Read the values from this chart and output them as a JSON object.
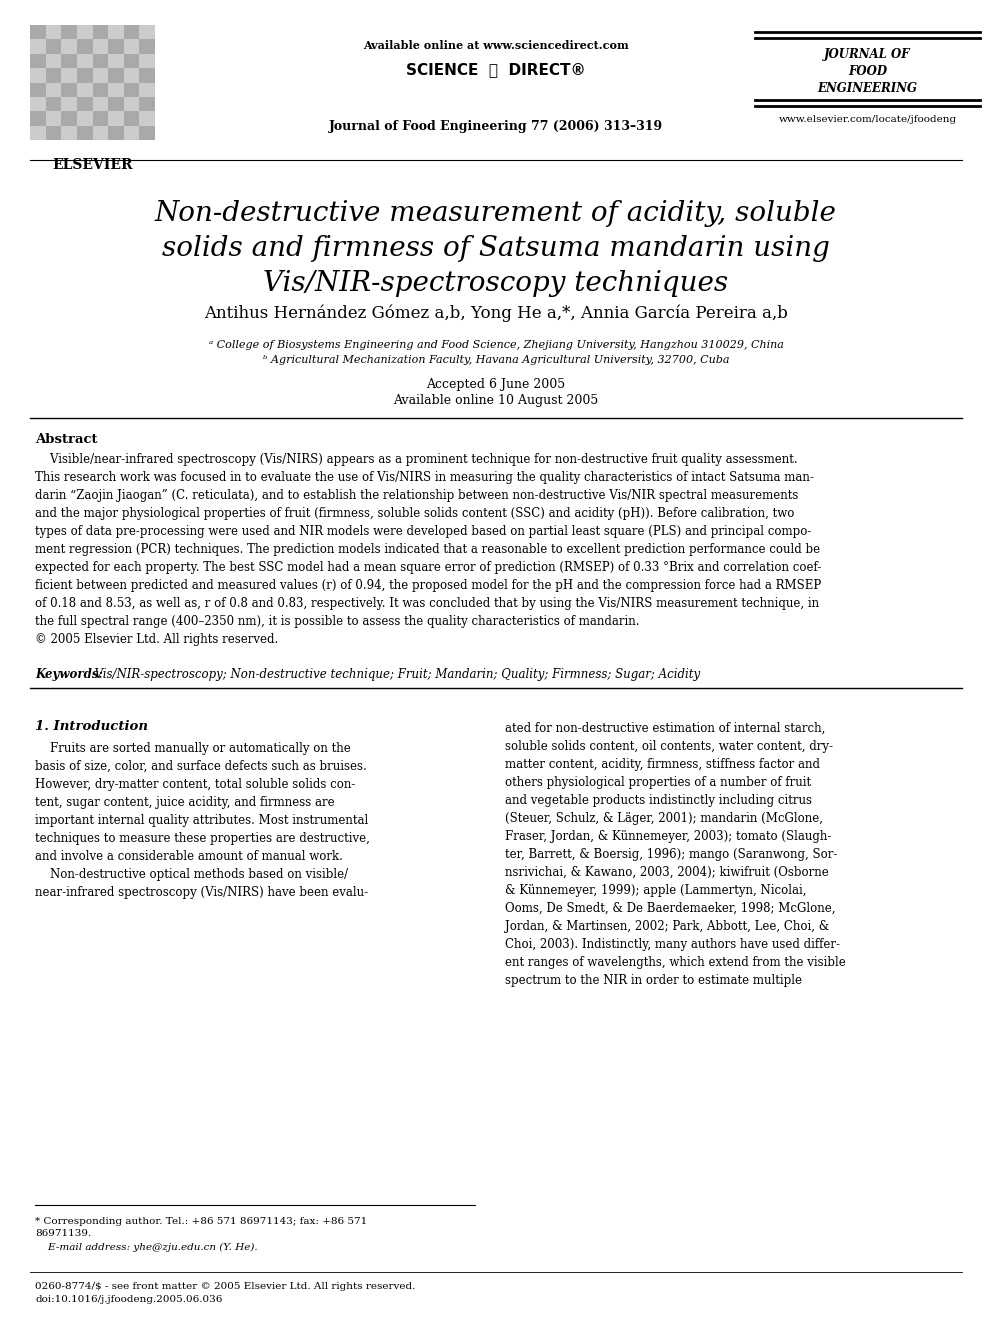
{
  "page_bg": "#ffffff",
  "elsevier_text": "ELSEVIER",
  "available_online": "Available online at www.sciencedirect.com",
  "science_direct_1": "SCIENCE",
  "science_direct_2": "DIRECT",
  "journal_ref": "Journal of Food Engineering 77 (2006) 313–319",
  "journal_name_line1": "JOURNAL OF",
  "journal_name_line2": "FOOD",
  "journal_name_line3": "ENGINEERING",
  "journal_url": "www.elsevier.com/locate/jfoodeng",
  "title_line1": "Non-destructive measurement of acidity, soluble",
  "title_line2": "solids and firmness of Satsuma mandarin using",
  "title_line3": "Vis/NIR-spectroscopy techniques",
  "authors_line": "Antihus Hernández Gómez a,b, Yong He a,*, Annia García Pereira a,b",
  "affil_a": "ᵃ College of Biosystems Engineering and Food Science, Zhejiang University, Hangzhou 310029, China",
  "affil_b": "ᵇ Agricultural Mechanization Faculty, Havana Agricultural University, 32700, Cuba",
  "accepted": "Accepted 6 June 2005",
  "available": "Available online 10 August 2005",
  "abstract_title": "Abstract",
  "abstract_para": "    Visible/near-infrared spectroscopy (Vis/NIRS) appears as a prominent technique for non-destructive fruit quality assessment.\nThis research work was focused in to evaluate the use of Vis/NIRS in measuring the quality characteristics of intact Satsuma man-\ndarin “Zaojin Jiaogan” (C. reticulata), and to establish the relationship between non-destructive Vis/NIR spectral measurements\nand the major physiological properties of fruit (firmness, soluble solids content (SSC) and acidity (pH)). Before calibration, two\ntypes of data pre-processing were used and NIR models were developed based on partial least square (PLS) and principal compo-\nment regression (PCR) techniques. The prediction models indicated that a reasonable to excellent prediction performance could be\nexpected for each property. The best SSC model had a mean square error of prediction (RMSEP) of 0.33 °Brix and correlation coef-\nficient between predicted and measured values (r) of 0.94, the proposed model for the pH and the compression force had a RMSEP\nof 0.18 and 8.53, as well as, r of 0.8 and 0.83, respectively. It was concluded that by using the Vis/NIRS measurement technique, in\nthe full spectral range (400–2350 nm), it is possible to assess the quality characteristics of mandarin.\n© 2005 Elsevier Ltd. All rights reserved.",
  "keywords_label": "Keywords:",
  "keywords_text": "  Vis/NIR-spectroscopy; Non-destructive technique; Fruit; Mandarin; Quality; Firmness; Sugar; Acidity",
  "intro_header": "1. Introduction",
  "col1_text": "    Fruits are sorted manually or automatically on the\nbasis of size, color, and surface defects such as bruises.\nHowever, dry-matter content, total soluble solids con-\ntent, sugar content, juice acidity, and firmness are\nimportant internal quality attributes. Most instrumental\ntechniques to measure these properties are destructive,\nand involve a considerable amount of manual work.\n    Non-destructive optical methods based on visible/\nnear-infrared spectroscopy (Vis/NIRS) have been evalu-",
  "col2_text": "ated for non-destructive estimation of internal starch,\nsoluble solids content, oil contents, water content, dry-\nmatter content, acidity, firmness, stiffness factor and\nothers physiological properties of a number of fruit\nand vegetable products indistinctly including citrus\n(Steuer, Schulz, & Läger, 2001); mandarin (McGlone,\nFraser, Jordan, & Künnemeyer, 2003); tomato (Slaugh-\nter, Barrett, & Boersig, 1996); mango (Saranwong, Sor-\nnsrivichai, & Kawano, 2003, 2004); kiwifruit (Osborne\n& Künnemeyer, 1999); apple (Lammertyn, Nicolai,\nOoms, De Smedt, & De Baerdemaeker, 1998; McGlone,\nJordan, & Martinsen, 2002; Park, Abbott, Lee, Choi, &\nChoi, 2003). Indistinctly, many authors have used differ-\nent ranges of wavelengths, which extend from the visible\nspectrum to the NIR in order to estimate multiple",
  "footnote1": "* Corresponding author. Tel.: +86 571 86971143; fax: +86 571\n86971139.",
  "footnote2": "    E-mail address: yhe@zju.edu.cn (Y. He).",
  "copyright_line": "0260-8774/$ - see front matter © 2005 Elsevier Ltd. All rights reserved.",
  "doi_line": "doi:10.1016/j.jfoodeng.2005.06.036",
  "link_color": "#0000cc"
}
